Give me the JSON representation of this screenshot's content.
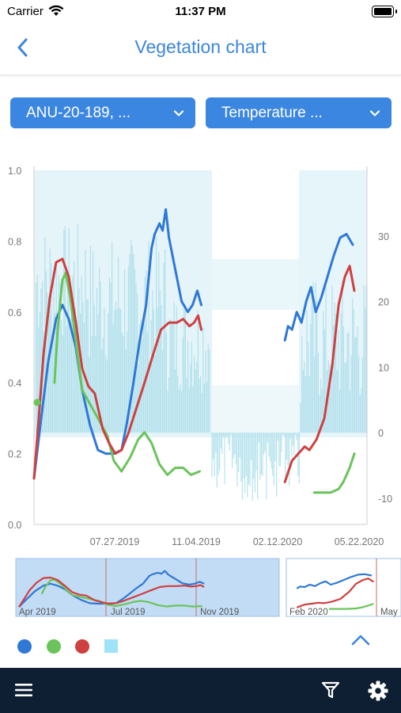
{
  "status": {
    "carrier": "Carrier",
    "time": "11:37 PM"
  },
  "nav": {
    "title": "Vegetation chart"
  },
  "filters": {
    "field": "ANU-20-189, ...",
    "metric": "Temperature ..."
  },
  "colors": {
    "accent": "#3b86e0",
    "blue": "#2f78d6",
    "green": "#6ac45a",
    "red": "#cf4040",
    "bars": "#a9dde9"
  },
  "icons": [
    "chevron-left-icon",
    "chevron-down-icon",
    "chevron-up-icon",
    "hamburger-menu-icon",
    "filter-icon",
    "gear-icon",
    "wifi-icon",
    "battery-icon"
  ],
  "chart_data": {
    "type": "line",
    "grid": false,
    "x_ticks": [
      "07.27.2019",
      "11.04.2019",
      "02.12.2020",
      "05.22.2020"
    ],
    "y_left": {
      "ticks": [
        "0.0",
        "0.2",
        "0.4",
        "0.6",
        "0.8",
        "1.0"
      ],
      "range": [
        0,
        1
      ]
    },
    "y_right": {
      "ticks": [
        "-10",
        "0",
        "10",
        "20",
        "30"
      ],
      "range": [
        -14,
        40
      ]
    },
    "x_range": [
      "2019-04-10",
      "2020-06-05"
    ],
    "navigator_labels": [
      "Apr 2019",
      "Jul 2019",
      "Nov 2019",
      "Feb 2020",
      "May"
    ],
    "legend": [
      "blue",
      "green",
      "red",
      "bars"
    ],
    "series": [
      {
        "color": "blue",
        "points": [
          [
            "2019-04-10",
            0.13
          ],
          [
            "2019-04-18",
            0.28
          ],
          [
            "2019-04-28",
            0.46
          ],
          [
            "2019-05-08",
            0.58
          ],
          [
            "2019-05-16",
            0.62
          ],
          [
            "2019-05-24",
            0.58
          ],
          [
            "2019-06-02",
            0.5
          ],
          [
            "2019-06-10",
            0.38
          ],
          [
            "2019-06-20",
            0.28
          ],
          [
            "2019-06-30",
            0.21
          ],
          [
            "2019-07-10",
            0.2
          ],
          [
            "2019-07-20",
            0.2
          ],
          [
            "2019-07-30",
            0.21
          ],
          [
            "2019-08-06",
            0.29
          ],
          [
            "2019-08-14",
            0.4
          ],
          [
            "2019-08-22",
            0.52
          ],
          [
            "2019-08-30",
            0.62
          ],
          [
            "2019-09-06",
            0.78
          ],
          [
            "2019-09-10",
            0.82
          ],
          [
            "2019-09-16",
            0.85
          ],
          [
            "2019-09-20",
            0.83
          ],
          [
            "2019-09-24",
            0.89
          ],
          [
            "2019-09-28",
            0.81
          ],
          [
            "2019-10-06",
            0.72
          ],
          [
            "2019-10-14",
            0.63
          ],
          [
            "2019-10-22",
            0.6
          ],
          [
            "2019-10-28",
            0.62
          ],
          [
            "2019-11-03",
            0.66
          ],
          [
            "2019-11-08",
            0.62
          ],
          null,
          [
            "2020-02-22",
            0.52
          ],
          [
            "2020-02-26",
            0.56
          ],
          [
            "2020-03-02",
            0.55
          ],
          [
            "2020-03-08",
            0.6
          ],
          [
            "2020-03-14",
            0.57
          ],
          [
            "2020-03-20",
            0.63
          ],
          [
            "2020-03-26",
            0.67
          ],
          [
            "2020-04-01",
            0.6
          ],
          [
            "2020-04-08",
            0.64
          ],
          [
            "2020-04-16",
            0.7
          ],
          [
            "2020-04-24",
            0.76
          ],
          [
            "2020-05-02",
            0.81
          ],
          [
            "2020-05-10",
            0.82
          ],
          [
            "2020-05-18",
            0.79
          ]
        ]
      },
      {
        "color": "green",
        "points": [
          [
            "2019-05-06",
            0.4
          ],
          [
            "2019-05-10",
            0.55
          ],
          [
            "2019-05-16",
            0.69
          ],
          [
            "2019-05-20",
            0.71
          ],
          [
            "2019-05-26",
            0.64
          ],
          [
            "2019-06-03",
            0.5
          ],
          [
            "2019-06-10",
            0.38
          ],
          [
            "2019-06-20",
            0.34
          ],
          [
            "2019-06-30",
            0.3
          ],
          [
            "2019-07-12",
            0.25
          ],
          [
            "2019-07-20",
            0.18
          ],
          [
            "2019-07-30",
            0.15
          ],
          [
            "2019-08-10",
            0.19
          ],
          [
            "2019-08-20",
            0.24
          ],
          [
            "2019-08-28",
            0.26
          ],
          [
            "2019-09-06",
            0.23
          ],
          [
            "2019-09-16",
            0.17
          ],
          [
            "2019-09-26",
            0.14
          ],
          [
            "2019-10-06",
            0.16
          ],
          [
            "2019-10-16",
            0.16
          ],
          [
            "2019-10-26",
            0.14
          ],
          [
            "2019-11-06",
            0.15
          ],
          null,
          [
            "2020-03-30",
            0.09
          ],
          [
            "2020-04-10",
            0.09
          ],
          [
            "2020-04-20",
            0.09
          ],
          [
            "2020-04-30",
            0.1
          ],
          [
            "2020-05-06",
            0.12
          ],
          [
            "2020-05-14",
            0.16
          ],
          [
            "2020-05-20",
            0.2
          ]
        ]
      },
      {
        "color": "red",
        "points": [
          [
            "2019-04-10",
            0.13
          ],
          [
            "2019-04-16",
            0.3
          ],
          [
            "2019-04-22",
            0.48
          ],
          [
            "2019-04-30",
            0.64
          ],
          [
            "2019-05-08",
            0.74
          ],
          [
            "2019-05-16",
            0.75
          ],
          [
            "2019-05-24",
            0.7
          ],
          [
            "2019-06-02",
            0.57
          ],
          [
            "2019-06-10",
            0.44
          ],
          [
            "2019-06-18",
            0.39
          ],
          [
            "2019-06-26",
            0.37
          ],
          [
            "2019-07-06",
            0.27
          ],
          [
            "2019-07-14",
            0.23
          ],
          [
            "2019-07-22",
            0.2
          ],
          [
            "2019-07-30",
            0.21
          ],
          [
            "2019-08-08",
            0.26
          ],
          [
            "2019-08-18",
            0.33
          ],
          [
            "2019-08-28",
            0.4
          ],
          [
            "2019-09-08",
            0.48
          ],
          [
            "2019-09-18",
            0.55
          ],
          [
            "2019-09-28",
            0.57
          ],
          [
            "2019-10-08",
            0.57
          ],
          [
            "2019-10-16",
            0.58
          ],
          [
            "2019-10-24",
            0.56
          ],
          [
            "2019-10-30",
            0.57
          ],
          [
            "2019-11-04",
            0.59
          ],
          [
            "2019-11-08",
            0.55
          ],
          null,
          [
            "2020-02-22",
            0.12
          ],
          [
            "2020-03-02",
            0.18
          ],
          [
            "2020-03-10",
            0.2
          ],
          [
            "2020-03-18",
            0.22
          ],
          [
            "2020-03-24",
            0.21
          ],
          [
            "2020-04-02",
            0.24
          ],
          [
            "2020-04-12",
            0.3
          ],
          [
            "2020-04-22",
            0.45
          ],
          [
            "2020-04-30",
            0.62
          ],
          [
            "2020-05-08",
            0.7
          ],
          [
            "2020-05-14",
            0.73
          ],
          [
            "2020-05-20",
            0.66
          ]
        ]
      }
    ]
  }
}
